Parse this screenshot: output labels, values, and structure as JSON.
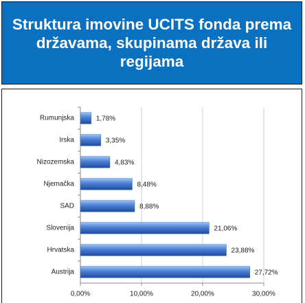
{
  "chart_data": {
    "type": "bar",
    "orientation": "horizontal",
    "title": "Struktura imovine UCITS fonda prema državama, skupinama država ili regijama",
    "categories": [
      "Rumunjska",
      "Irska",
      "Nizozemska",
      "Njemačka",
      "SAD",
      "Slovenija",
      "Hrvatska",
      "Austrija"
    ],
    "values": [
      1.78,
      3.35,
      4.83,
      8.48,
      8.88,
      21.06,
      23.88,
      27.72
    ],
    "value_labels": [
      "1,78%",
      "3,35%",
      "4,83%",
      "8,48%",
      "8,88%",
      "21,06%",
      "23,88%",
      "27,72%"
    ],
    "color": "#3a6cc4",
    "xlim": [
      0,
      30
    ],
    "xticks": [
      {
        "value": 0,
        "label": "0,00%"
      },
      {
        "value": 10,
        "label": "10,00%"
      },
      {
        "value": 20,
        "label": "20,00%"
      },
      {
        "value": 30,
        "label": "30,00%"
      }
    ],
    "grid": true
  }
}
